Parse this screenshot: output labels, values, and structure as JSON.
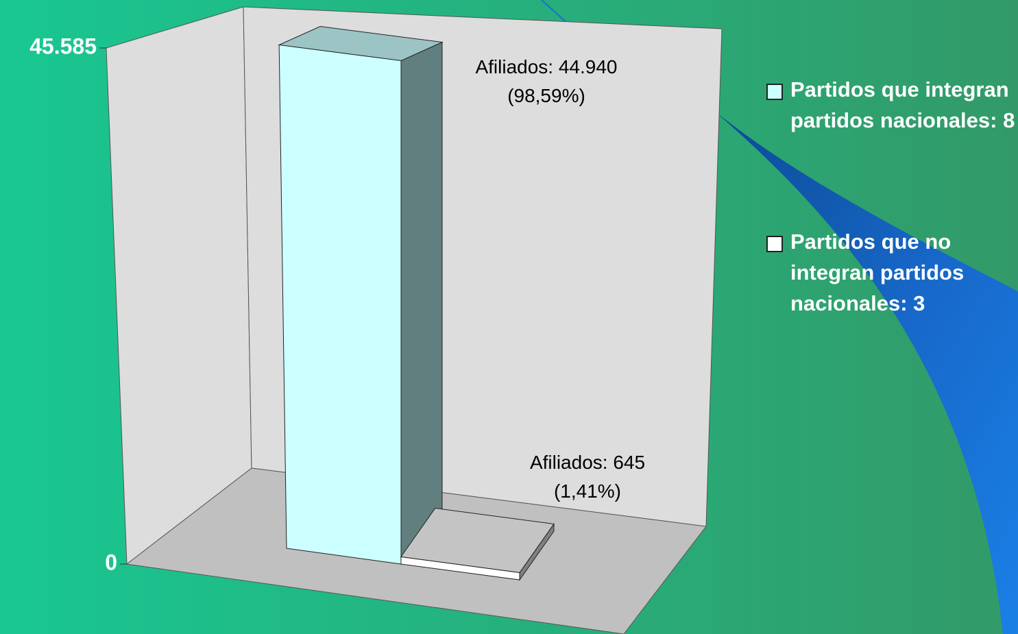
{
  "chart_data": {
    "type": "bar",
    "series": [
      {
        "name": "Partidos que integran partidos nacionales: 8",
        "color": "#ccffff",
        "values": [
          44940
        ],
        "value_labels": [
          "Afiliados: 44.940\n(98,59%)"
        ]
      },
      {
        "name": "Partidos que no integran partidos nacionales: 3",
        "color": "#ffffff",
        "values": [
          645
        ],
        "value_labels": [
          "Afiliados: 645\n(1,41%)"
        ]
      }
    ],
    "ylim": [
      0,
      45585
    ],
    "yticks": [
      0,
      {
        "value": 45585,
        "label": "45.585"
      }
    ]
  }
}
